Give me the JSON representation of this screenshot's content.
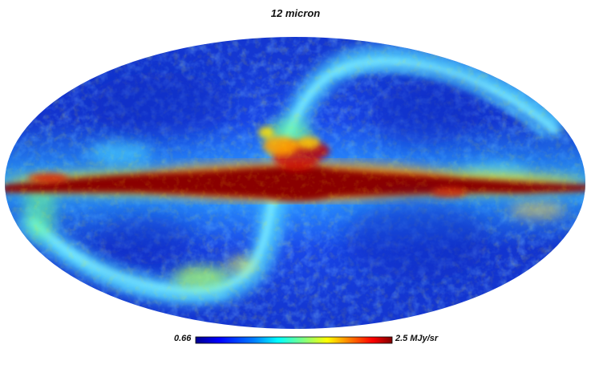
{
  "title": "12 micron",
  "colorbar": {
    "min_label": "0.66",
    "max_label": "2.5 MJy/sr",
    "colormap": [
      "#00008f",
      "#0000ff",
      "#0080ff",
      "#00ffff",
      "#80ff80",
      "#ffff00",
      "#ff8000",
      "#ff0000",
      "#800000"
    ]
  },
  "map": {
    "projection": "mollweide",
    "content": "all-sky 12 micron infrared intensity map showing bright galactic plane and S-shaped zodiacal dust bands",
    "colors": {
      "background_low": "#1a3ad8",
      "mid": "#37a8ff",
      "high": "#ffff00",
      "saturated": "#8b0000"
    }
  }
}
